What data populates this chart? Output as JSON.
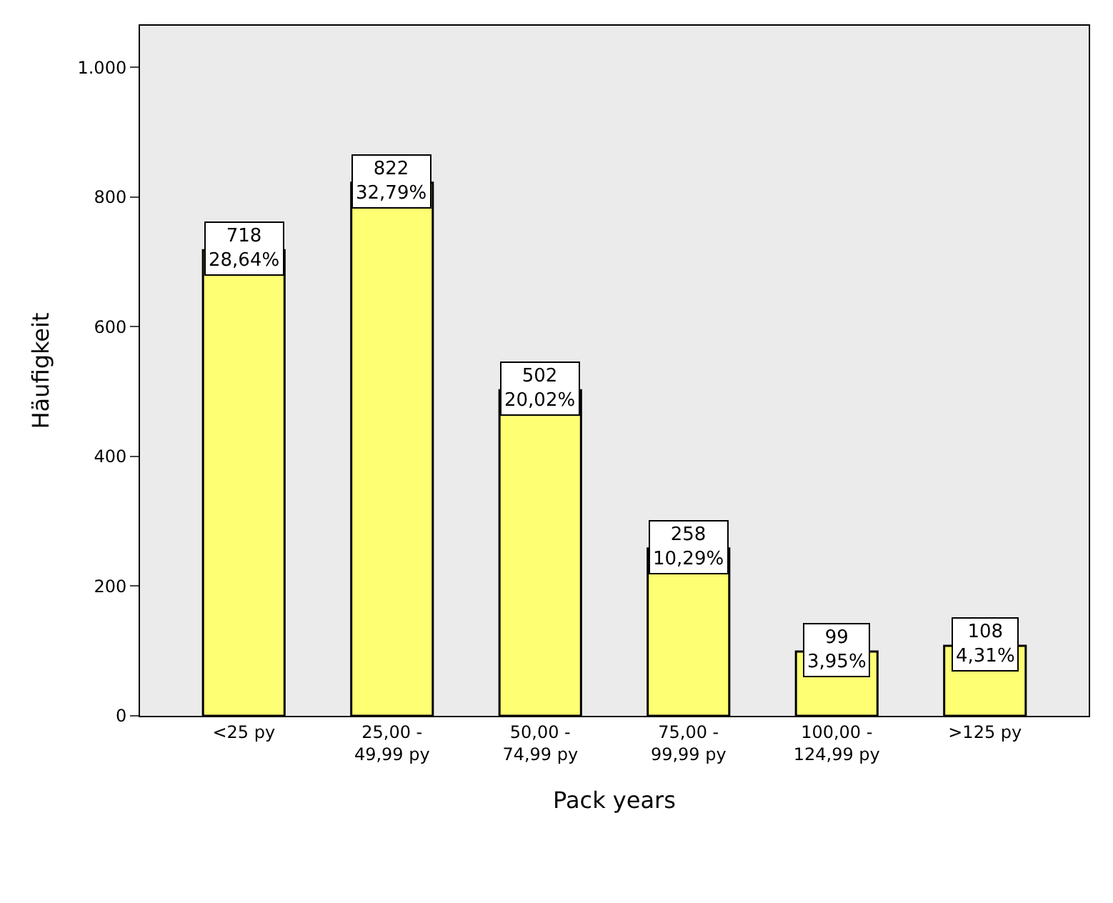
{
  "chart_data": {
    "type": "bar",
    "xlabel": "Pack years",
    "ylabel": "Häufigkeit",
    "categories": [
      "<25 py",
      "25,00 -\n49,99 py",
      "50,00 -\n74,99 py",
      "75,00 -\n99,99 py",
      "100,00 -\n124,99 py",
      ">125 py"
    ],
    "values": [
      718,
      822,
      502,
      258,
      99,
      108
    ],
    "value_labels": [
      "718\n28,64%",
      "822\n32,79%",
      "502\n20,02%",
      "258\n10,29%",
      "99\n3,95%",
      "108\n4,31%"
    ],
    "color": "#ffff73",
    "ylim": [
      0,
      1064
    ],
    "yticks": [
      0,
      200,
      400,
      600,
      800,
      {
        "value": 1000,
        "label": "1.000"
      }
    ],
    "grid": false
  }
}
